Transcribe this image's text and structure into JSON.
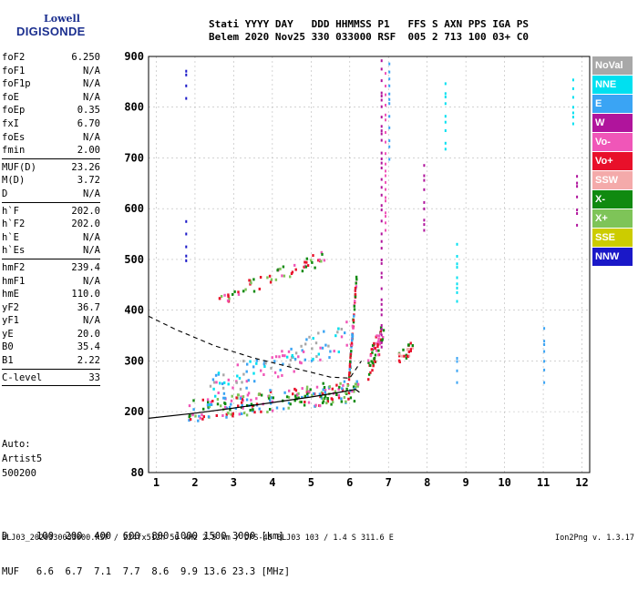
{
  "logo": {
    "line1": "Lowell",
    "line2": "DIGISONDE"
  },
  "header": {
    "line1": "Stati YYYY DAY   DDD HHMMSS P1   FFS S AXN PPS IGA PS",
    "line2": "Belem 2020 Nov25 330 033000 RSF  005 2 713 100 03+ C0"
  },
  "params": [
    {
      "name": "foF2",
      "value": "6.250"
    },
    {
      "name": "foF1",
      "value": "N/A"
    },
    {
      "name": "foF1p",
      "value": "N/A"
    },
    {
      "name": "foE",
      "value": "N/A"
    },
    {
      "name": "foEp",
      "value": "0.35"
    },
    {
      "name": "fxI",
      "value": "6.70"
    },
    {
      "name": "foEs",
      "value": "N/A"
    },
    {
      "name": "fmin",
      "value": "2.00",
      "sep": true
    },
    {
      "name": "MUF(D)",
      "value": "23.26"
    },
    {
      "name": "M(D)",
      "value": "3.72"
    },
    {
      "name": "D",
      "value": "N/A",
      "sep": true
    },
    {
      "name": "h`F",
      "value": "202.0"
    },
    {
      "name": "h`F2",
      "value": "202.0"
    },
    {
      "name": "h`E",
      "value": "N/A"
    },
    {
      "name": "h`Es",
      "value": "N/A",
      "sep": true
    },
    {
      "name": "hmF2",
      "value": "239.4"
    },
    {
      "name": "hmF1",
      "value": "N/A"
    },
    {
      "name": "hmE",
      "value": "110.0"
    },
    {
      "name": "yF2",
      "value": "36.7"
    },
    {
      "name": "yF1",
      "value": "N/A"
    },
    {
      "name": "yE",
      "value": "20.0"
    },
    {
      "name": "B0",
      "value": "35.4"
    },
    {
      "name": "B1",
      "value": "2.22",
      "sep": true
    },
    {
      "name": "C-level",
      "value": "33",
      "sep": true
    }
  ],
  "auto": {
    "line1": "Auto:",
    "line2": "Artist5",
    "line3": "500200"
  },
  "dmuf": {
    "d_line": "D     100  200  400  600  800 1000 1500 3000 [km]",
    "muf_line": "MUF   6.6  6.7  7.1  7.7  8.6  9.9 13.6 23.3 [MHz]"
  },
  "footer": {
    "left": "BLJ03_2020330033000.RSF / 224fx512h 50 kHz 2.5 km / DPS-4D BLJ03 103 / 1.4 S 311.6 E",
    "right": "Ion2Png v. 1.3.17"
  },
  "legend": [
    {
      "label": "NoVal",
      "color": "#a8a8a8"
    },
    {
      "label": "NNE",
      "color": "#00e0f0"
    },
    {
      "label": "E",
      "color": "#3aa4f4"
    },
    {
      "label": "W",
      "color": "#b0149c"
    },
    {
      "label": "Vo-",
      "color": "#f056b8"
    },
    {
      "label": "Vo+",
      "color": "#e8102a"
    },
    {
      "label": "SSW",
      "color": "#f4aaaa"
    },
    {
      "label": "X-",
      "color": "#108a10"
    },
    {
      "label": "X+",
      "color": "#7ec458"
    },
    {
      "label": "SSE",
      "color": "#cccc00"
    },
    {
      "label": "NNW",
      "color": "#1a18c8"
    }
  ],
  "chart_data": {
    "type": "scatter",
    "xlim": [
      0.8,
      12.2
    ],
    "ylim": [
      80,
      900
    ],
    "x_ticks": [
      1,
      2,
      3,
      4,
      5,
      6,
      7,
      8,
      9,
      10,
      11,
      12
    ],
    "y_ticks": [
      80,
      200,
      300,
      400,
      500,
      600,
      700,
      800,
      900
    ],
    "grid": true,
    "legend_position": "right",
    "profile_solid": [
      [
        0.8,
        187
      ],
      [
        2,
        197
      ],
      [
        3,
        207
      ],
      [
        4,
        218
      ],
      [
        5,
        229
      ],
      [
        5.8,
        239
      ],
      [
        6.15,
        244
      ],
      [
        6.25,
        238
      ]
    ],
    "profile_dashed": [
      [
        0.8,
        388
      ],
      [
        1.5,
        362
      ],
      [
        2.5,
        330
      ],
      [
        3.5,
        306
      ],
      [
        4.5,
        287
      ],
      [
        5.5,
        268
      ],
      [
        6.0,
        266
      ],
      [
        6.3,
        300
      ]
    ],
    "traces": [
      {
        "x0": 1.8,
        "x1": 6.2,
        "h0": 203,
        "h1": 245,
        "spread": 22,
        "n": 230,
        "colors": [
          "#e8102a",
          "#f056b8",
          "#108a10",
          "#7ec458",
          "#3aa4f4"
        ]
      },
      {
        "x0": 2.3,
        "x1": 6.0,
        "h0": 245,
        "h1": 355,
        "spread": 30,
        "n": 110,
        "colors": [
          "#3aa4f4",
          "#00e0f0",
          "#f056b8",
          "#a8a8a8"
        ]
      },
      {
        "x0": 2.6,
        "x1": 5.4,
        "h0": 425,
        "h1": 510,
        "spread": 14,
        "n": 60,
        "colors": [
          "#e8102a",
          "#f056b8",
          "#108a10",
          "#7ec458"
        ]
      },
      {
        "x0": 5.95,
        "x1": 6.15,
        "h0": 260,
        "h1": 470,
        "spread": 10,
        "n": 60,
        "colors": [
          "#e8102a",
          "#f056b8",
          "#3aa4f4",
          "#108a10"
        ]
      },
      {
        "x0": 6.45,
        "x1": 6.85,
        "h0": 290,
        "h1": 360,
        "spread": 25,
        "n": 55,
        "colors": [
          "#e8102a",
          "#f056b8",
          "#108a10"
        ]
      },
      {
        "x0": 7.2,
        "x1": 7.6,
        "h0": 305,
        "h1": 330,
        "spread": 12,
        "n": 25,
        "colors": [
          "#e8102a",
          "#108a10",
          "#f4aaaa"
        ]
      }
    ],
    "columns": [
      {
        "x": 1.75,
        "h0": 820,
        "h1": 890,
        "color": "#1a18c8"
      },
      {
        "x": 1.75,
        "h0": 500,
        "h1": 590,
        "color": "#1a18c8"
      },
      {
        "x": 6.8,
        "h0": 330,
        "h1": 900,
        "color": "#b0149c"
      },
      {
        "x": 6.9,
        "h0": 560,
        "h1": 880,
        "color": "#f056b8"
      },
      {
        "x": 7.0,
        "h0": 700,
        "h1": 900,
        "color": "#3aa4f4"
      },
      {
        "x": 7.9,
        "h0": 560,
        "h1": 700,
        "color": "#b0149c"
      },
      {
        "x": 8.45,
        "h0": 720,
        "h1": 850,
        "color": "#00e0f0"
      },
      {
        "x": 8.75,
        "h0": 420,
        "h1": 540,
        "color": "#00e0f0"
      },
      {
        "x": 8.75,
        "h0": 260,
        "h1": 320,
        "color": "#3aa4f4"
      },
      {
        "x": 11.0,
        "h0": 260,
        "h1": 380,
        "color": "#3aa4f4"
      },
      {
        "x": 11.75,
        "h0": 770,
        "h1": 880,
        "color": "#00e0f0"
      },
      {
        "x": 11.85,
        "h0": 570,
        "h1": 670,
        "color": "#b0149c"
      }
    ]
  }
}
